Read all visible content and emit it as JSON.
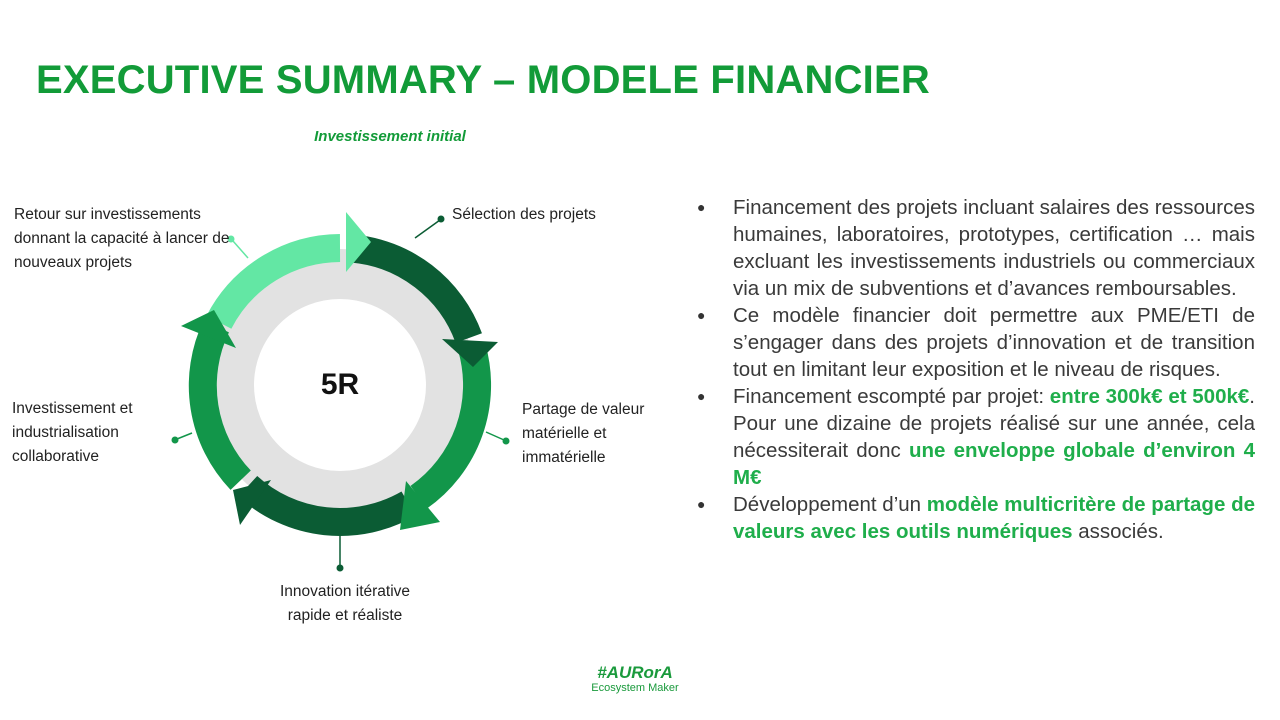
{
  "slide": {
    "title": "EXECUTIVE SUMMARY – MODELE FINANCIER"
  },
  "cycle": {
    "top_label": "Investissement initial",
    "center": "5R",
    "steps": [
      "Sélection des projets",
      "Partage de valeur matérielle et immatérielle",
      "Innovation itérative rapide et réaliste",
      "Investissement et industrialisation collaborative",
      "Retour sur investissements donnant la capacité à lancer de nouveaux projets"
    ],
    "colors": {
      "dark_green": "#0b5c34",
      "mid_green": "#12964a",
      "light_green": "#63e7a4",
      "ring_grey": "#e2e2e2",
      "accent_green": "#129b38"
    }
  },
  "bullets": [
    {
      "parts": [
        {
          "text": "Financement des projets incluant salaires des ressources humaines, laboratoires, prototypes, certification … mais excluant les investissements industriels ou commerciaux via un mix de subventions et d’avances remboursables.",
          "highlight": false
        }
      ]
    },
    {
      "parts": [
        {
          "text": "Ce modèle financier doit permettre aux PME/ETI de s’engager dans des projets d’innovation et de transition tout en limitant leur exposition et le niveau de risques.",
          "highlight": false
        }
      ]
    },
    {
      "parts": [
        {
          "text": "Financement escompté par projet: ",
          "highlight": false
        },
        {
          "text": "entre 300k€ et 500k€",
          "highlight": true
        },
        {
          "text": ". Pour une dizaine de projets réalisé sur une année, cela nécessiterait donc ",
          "highlight": false
        },
        {
          "text": "une enveloppe globale d’environ 4 M€",
          "highlight": true
        }
      ]
    },
    {
      "parts": [
        {
          "text": "Développement d’un ",
          "highlight": false
        },
        {
          "text": "modèle multicritère de partage de valeurs avec les outils numériques",
          "highlight": true
        },
        {
          "text": " associés.",
          "highlight": false
        }
      ]
    }
  ],
  "footer": {
    "tag": "#AURorA",
    "subtitle": "Ecosystem Maker"
  }
}
